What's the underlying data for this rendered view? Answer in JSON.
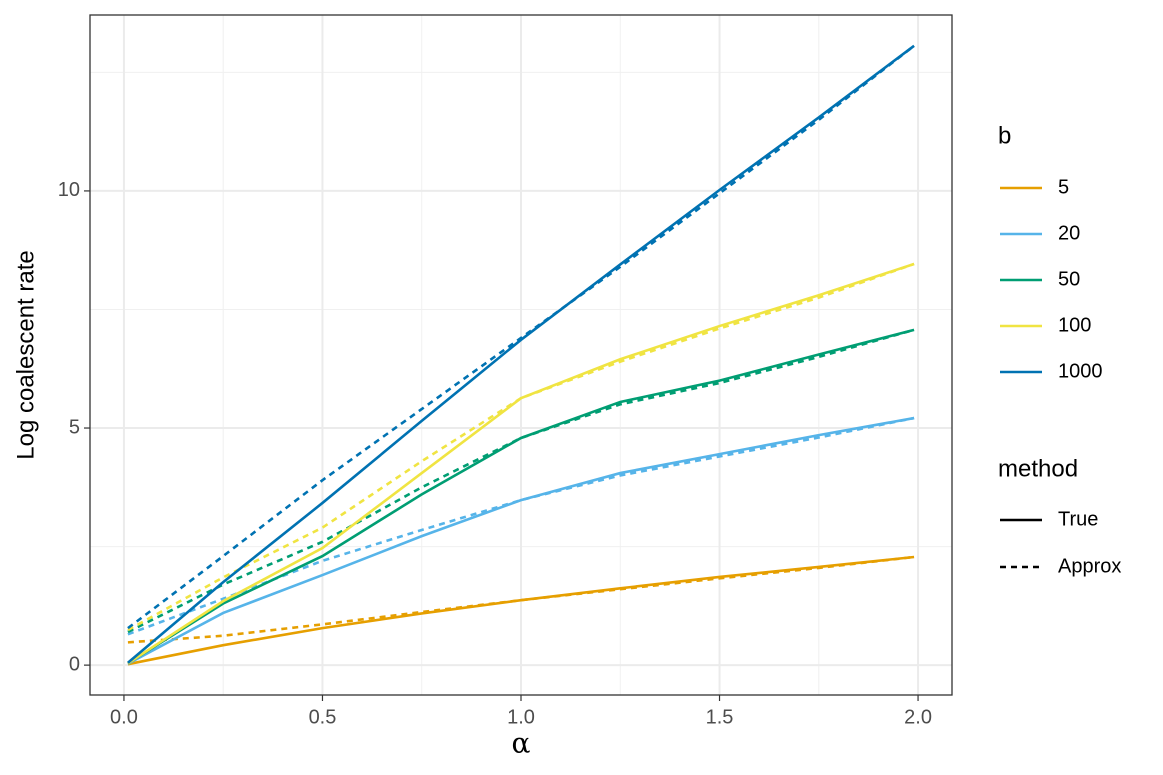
{
  "chart_data": {
    "type": "line",
    "x_label": "α",
    "y_label": "Log coalescent rate",
    "x": [
      0.01,
      0.25,
      0.5,
      0.75,
      1,
      1.25,
      1.5,
      1.75,
      1.99
    ],
    "xlim": [
      -0.0855,
      2.0855
    ],
    "ylim": [
      -0.63,
      13.71
    ],
    "xticks": [
      {
        "value": 0,
        "label": "0.0"
      },
      0.5,
      {
        "value": 1,
        "label": "1.0"
      },
      1.5,
      {
        "value": 2,
        "label": "2.0"
      }
    ],
    "yticks": [
      0,
      5,
      10
    ],
    "xminor": [
      0.25,
      0.75,
      1.25,
      1.75
    ],
    "yminor": [
      2.5,
      7.5,
      12.5
    ],
    "grid": true,
    "legend_title": "b",
    "method_legend": {
      "title": "method",
      "items": [
        {
          "name": "True",
          "dash": "solid"
        },
        {
          "name": "Approx",
          "dash": "dashed"
        }
      ]
    },
    "series": [
      {
        "name": "5",
        "color": "#E69F00",
        "values": [
          0.02,
          0.42,
          0.78,
          1.09,
          1.37,
          1.62,
          1.86,
          2.07,
          2.28
        ],
        "approx": [
          0.48,
          0.62,
          0.86,
          1.12,
          1.37,
          1.6,
          1.83,
          2.05,
          2.28
        ]
      },
      {
        "name": "20",
        "color": "#56B4E9",
        "values": [
          0.03,
          1.1,
          1.9,
          2.72,
          3.48,
          4.05,
          4.45,
          4.85,
          5.21
        ],
        "approx": [
          0.65,
          1.4,
          2.2,
          2.85,
          3.48,
          4.0,
          4.4,
          4.8,
          5.21
        ]
      },
      {
        "name": "50",
        "color": "#009E73",
        "values": [
          0.04,
          1.3,
          2.3,
          3.6,
          4.79,
          5.55,
          6.0,
          6.55,
          7.07
        ],
        "approx": [
          0.7,
          1.7,
          2.6,
          3.75,
          4.79,
          5.5,
          5.95,
          6.5,
          7.07
        ]
      },
      {
        "name": "100",
        "color": "#F0E442",
        "values": [
          0.04,
          1.35,
          2.47,
          4.05,
          5.63,
          6.45,
          7.15,
          7.8,
          8.46
        ],
        "approx": [
          0.74,
          1.85,
          2.9,
          4.3,
          5.63,
          6.4,
          7.1,
          7.75,
          8.46
        ]
      },
      {
        "name": "1000",
        "color": "#0072B2",
        "values": [
          0.05,
          1.75,
          3.42,
          5.15,
          6.86,
          8.45,
          10.02,
          11.55,
          13.06
        ],
        "approx": [
          0.78,
          2.3,
          3.9,
          5.4,
          6.9,
          8.4,
          9.95,
          11.5,
          13.06
        ]
      }
    ]
  }
}
